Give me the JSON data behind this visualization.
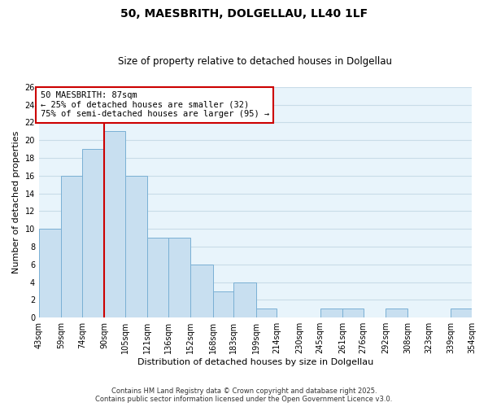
{
  "title": "50, MAESBRITH, DOLGELLAU, LL40 1LF",
  "subtitle": "Size of property relative to detached houses in Dolgellau",
  "xlabel": "Distribution of detached houses by size in Dolgellau",
  "ylabel": "Number of detached properties",
  "bin_edges": [
    43,
    59,
    74,
    90,
    105,
    121,
    136,
    152,
    168,
    183,
    199,
    214,
    230,
    245,
    261,
    276,
    292,
    308,
    323,
    339,
    354
  ],
  "bar_heights": [
    10,
    16,
    19,
    21,
    16,
    9,
    9,
    6,
    3,
    4,
    1,
    0,
    0,
    1,
    1,
    0,
    1,
    0,
    0,
    1
  ],
  "bar_color": "#c8dff0",
  "bar_edge_color": "#7ab0d4",
  "grid_color": "#c8dce8",
  "vline_x": 90,
  "vline_color": "#cc0000",
  "ylim": [
    0,
    26
  ],
  "yticks": [
    0,
    2,
    4,
    6,
    8,
    10,
    12,
    14,
    16,
    18,
    20,
    22,
    24,
    26
  ],
  "annotation_title": "50 MAESBRITH: 87sqm",
  "annotation_line1": "← 25% of detached houses are smaller (32)",
  "annotation_line2": "75% of semi-detached houses are larger (95) →",
  "annotation_box_color": "#ffffff",
  "annotation_box_edge": "#cc0000",
  "footnote1": "Contains HM Land Registry data © Crown copyright and database right 2025.",
  "footnote2": "Contains public sector information licensed under the Open Government Licence v3.0.",
  "fig_background": "#ffffff",
  "plot_background": "#e8f4fb",
  "title_fontsize": 10,
  "subtitle_fontsize": 8.5,
  "axis_label_fontsize": 8,
  "tick_fontsize": 7,
  "footnote_fontsize": 6,
  "annotation_fontsize": 7.5
}
